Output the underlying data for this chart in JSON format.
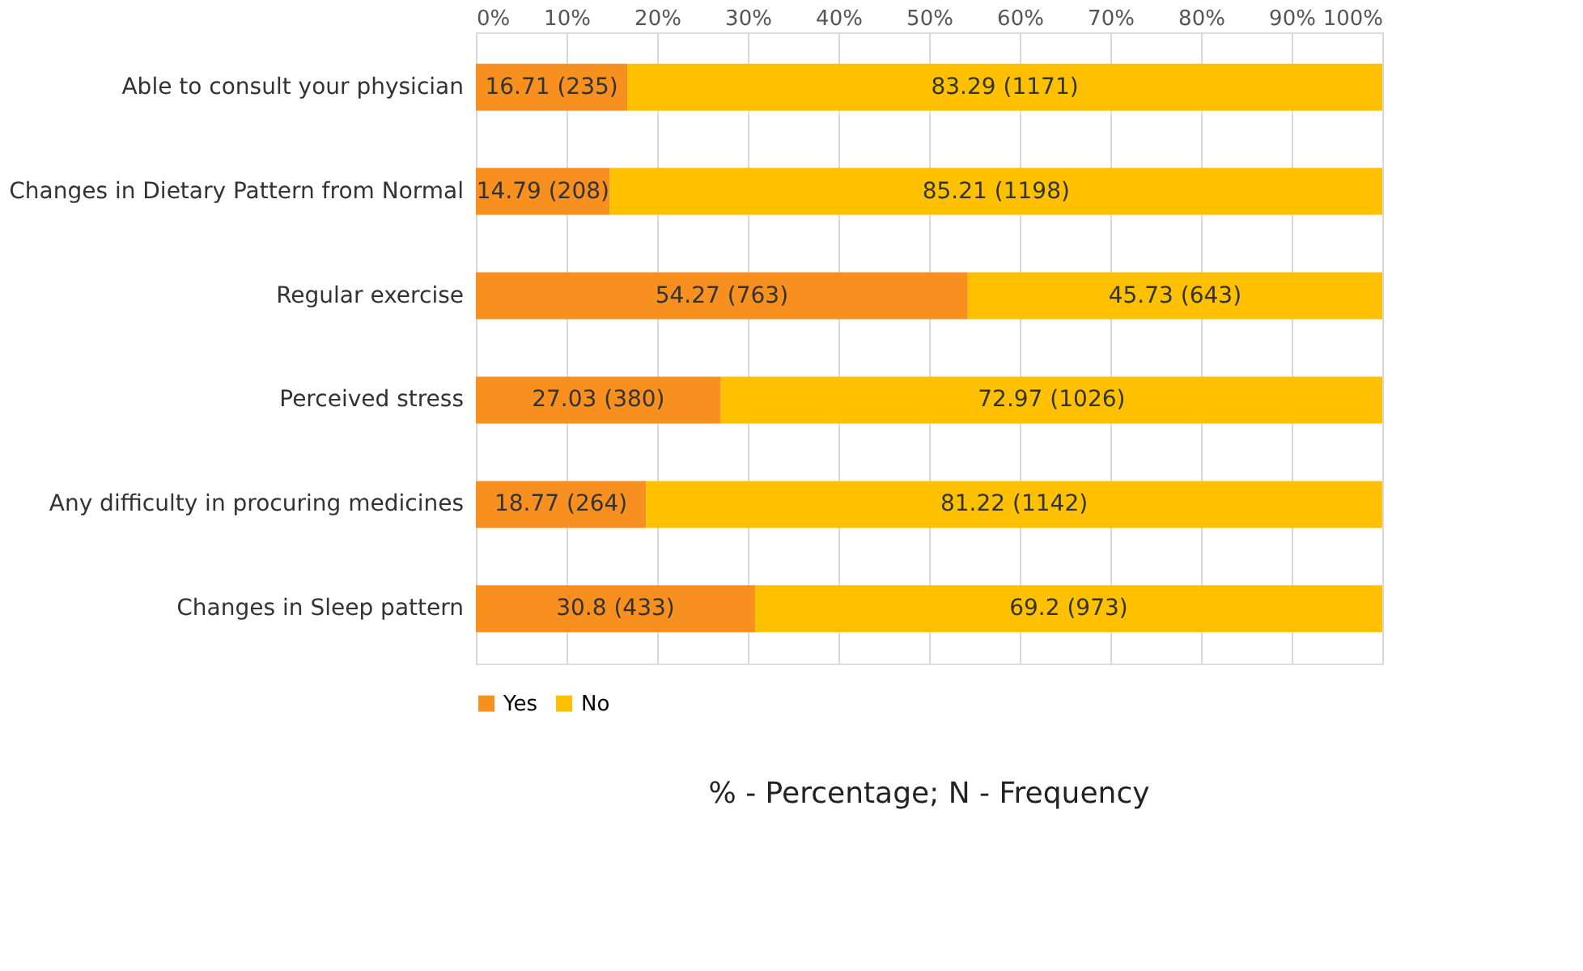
{
  "chart_data": {
    "type": "bar",
    "orientation": "horizontal",
    "stacked": true,
    "categories": [
      "Able to consult your physician",
      "Changes in Dietary Pattern from Normal",
      "Regular exercise",
      "Perceived stress",
      "Any difficulty in procuring medicines",
      "Changes in Sleep pattern"
    ],
    "series": [
      {
        "name": "Yes",
        "color": "#f7901e",
        "values": [
          16.71,
          14.79,
          54.27,
          27.03,
          18.77,
          30.8
        ],
        "value_labels": [
          "16.71 (235)",
          "14.79 (208)",
          "54.27 (763)",
          "27.03 (380)",
          "18.77 (264)",
          "30.8 (433)"
        ]
      },
      {
        "name": "No",
        "color": "#ffc000",
        "values": [
          83.29,
          85.21,
          45.73,
          72.97,
          81.22,
          69.2
        ],
        "value_labels": [
          "83.29 (1171)",
          "85.21 (1198)",
          "45.73 (643)",
          "72.97 (1026)",
          "81.22 (1142)",
          "69.2 (973)"
        ]
      }
    ],
    "xlim": [
      0,
      100
    ],
    "xticks": [
      {
        "value": 0,
        "label": "0%"
      },
      {
        "value": 10,
        "label": "10%"
      },
      {
        "value": 20,
        "label": "20%"
      },
      {
        "value": 30,
        "label": "30%"
      },
      {
        "value": 40,
        "label": "40%"
      },
      {
        "value": 50,
        "label": "50%"
      },
      {
        "value": 60,
        "label": "60%"
      },
      {
        "value": 70,
        "label": "70%"
      },
      {
        "value": 80,
        "label": "80%"
      },
      {
        "value": 90,
        "label": "90%"
      },
      {
        "value": 100,
        "label": "100%"
      }
    ],
    "grid": "x",
    "legend": "bottom",
    "annotations": [
      "% - Percentage; N - Frequency"
    ]
  }
}
